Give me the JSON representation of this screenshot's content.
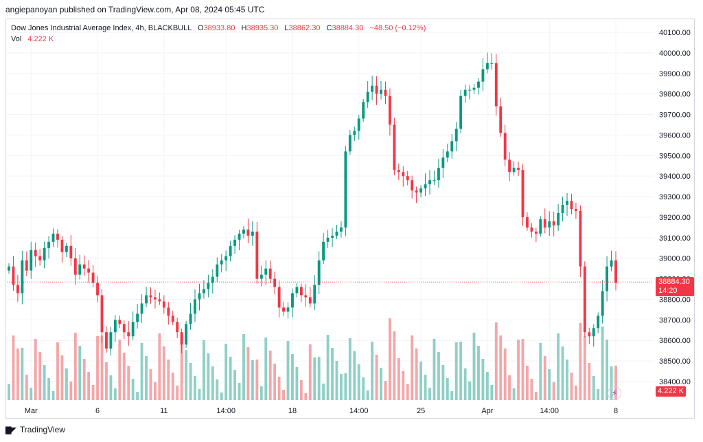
{
  "publisher": "angiepanoyan published on TradingView.com, Apr 08, 2024 05:45 UTC",
  "legend": {
    "symbol": "Dow Jones Industrial Average Index, 4h, BLACKBULL",
    "o_label": "O",
    "o": "38933.80",
    "h_label": "H",
    "h": "38935.30",
    "l_label": "L",
    "l": "38862.30",
    "c_label": "C",
    "c": "38884.30",
    "change": "−48.50 (−0.12%)",
    "vol_label": "Vol",
    "vol": "4.222 K"
  },
  "price_tag": {
    "price": "38884.30",
    "countdown": "14:20"
  },
  "volume_tag": "4.222 K",
  "footer": {
    "brand": "TradingView",
    "logo": "tradingview-logo-icon"
  },
  "colors": {
    "up": "#089981",
    "down": "#f23645",
    "up_vol": "#8fcfc6",
    "down_vol": "#f4a6a8",
    "grid": "#f0f3fa"
  },
  "chart_data": {
    "type": "candlestick",
    "y_ticks": [
      "40100.00",
      "40000.00",
      "39900.00",
      "39800.00",
      "39700.00",
      "39600.00",
      "39500.00",
      "39400.00",
      "39300.00",
      "39200.00",
      "39100.00",
      "39000.00",
      "38900.00",
      "38800.00",
      "38700.00",
      "38600.00",
      "38500.00",
      "38400.00"
    ],
    "y_tick_values": [
      40100,
      40000,
      39900,
      39800,
      39700,
      39600,
      39500,
      39400,
      39300,
      39200,
      39100,
      39000,
      38900,
      38800,
      38700,
      38600,
      38500,
      38400
    ],
    "ylim": [
      38350,
      40150
    ],
    "x_labels": [
      "Mar",
      "6",
      "11",
      "14:00",
      "18",
      "14:00",
      "25",
      "Apr",
      "14:00",
      "8"
    ],
    "x_label_bars": [
      5,
      20,
      35,
      49,
      64,
      79,
      93,
      108,
      122,
      137
    ],
    "last_price": 38884.3,
    "closes": [
      38960,
      38870,
      38830,
      38990,
      38940,
      39040,
      39010,
      38990,
      39050,
      39080,
      39120,
      39090,
      39030,
      39060,
      39000,
      38920,
      38970,
      38950,
      38930,
      38880,
      38820,
      38640,
      38560,
      38640,
      38700,
      38680,
      38640,
      38620,
      38690,
      38730,
      38780,
      38820,
      38810,
      38800,
      38790,
      38760,
      38720,
      38690,
      38640,
      38580,
      38680,
      38730,
      38800,
      38830,
      38850,
      38880,
      38910,
      38970,
      38990,
      39010,
      39060,
      39090,
      39120,
      39140,
      39110,
      39130,
      38900,
      38920,
      38950,
      38900,
      38860,
      38760,
      38740,
      38760,
      38830,
      38860,
      38820,
      38810,
      38780,
      38870,
      38990,
      39080,
      39100,
      39110,
      39130,
      39150,
      39520,
      39600,
      39620,
      39680,
      39760,
      39810,
      39840,
      39800,
      39820,
      39790,
      39650,
      39430,
      39420,
      39400,
      39380,
      39330,
      39320,
      39340,
      39360,
      39380,
      39380,
      39440,
      39490,
      39520,
      39570,
      39630,
      39790,
      39820,
      39820,
      39830,
      39860,
      39920,
      39950,
      39950,
      39740,
      39610,
      39480,
      39420,
      39440,
      39430,
      39200,
      39150,
      39130,
      39120,
      39190,
      39150,
      39180,
      39160,
      39220,
      39260,
      39280,
      39240,
      39230,
      38960,
      38640,
      38620,
      38660,
      38720,
      38840,
      38960,
      38990,
      38880
    ]
  }
}
